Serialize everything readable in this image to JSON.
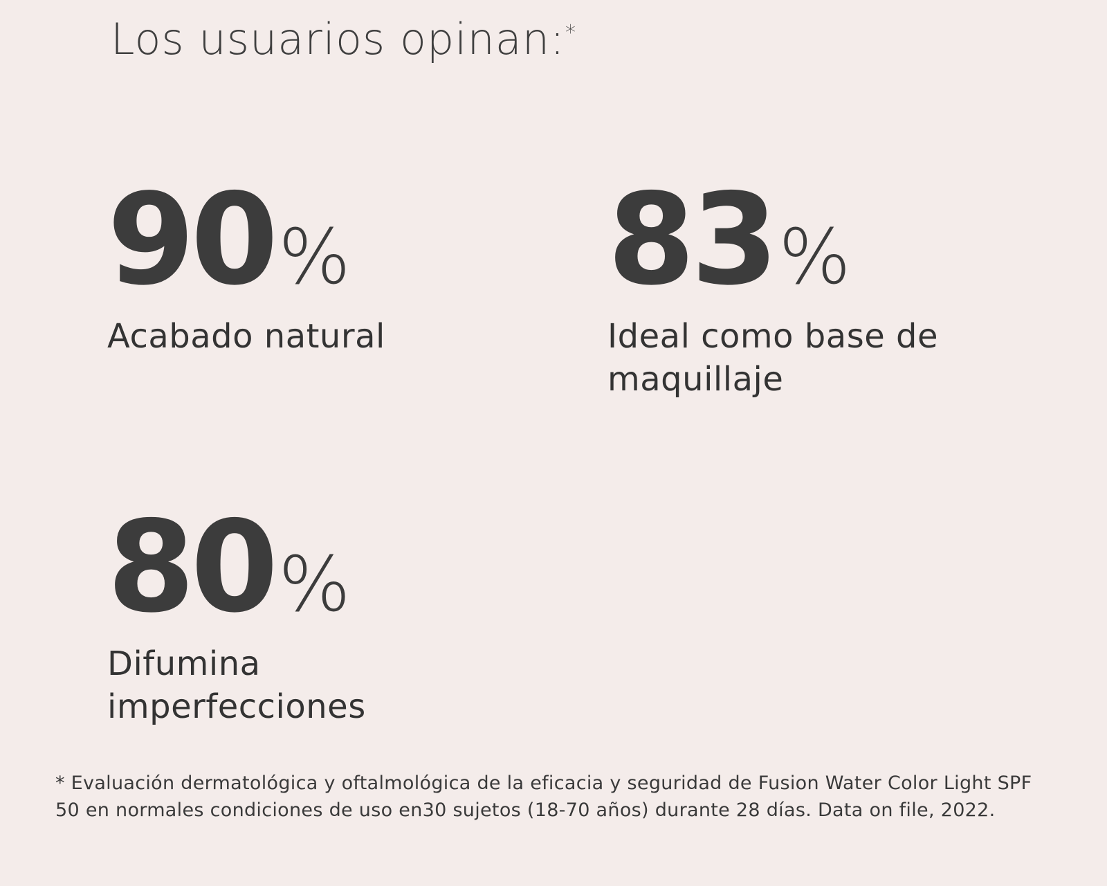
{
  "heading": {
    "text": "Los usuarios opinan:",
    "mark": "*"
  },
  "stats": [
    {
      "number": "90",
      "unit": "%",
      "label": "Acabado natural"
    },
    {
      "number": "83",
      "unit": "%",
      "label": "Ideal como base de maquillaje"
    },
    {
      "number": "80",
      "unit": "%",
      "label": "Difumina imperfecciones"
    }
  ],
  "footnote": "* Evaluación dermatológica y oftalmológica de la eficacia y seguridad de Fusion Water Color Light SPF 50 en normales condiciones de uso en30 sujetos (18-70 años) durante 28 días. Data on file, 2022.",
  "colors": {
    "background": "#f4ecea",
    "text": "#3f3f3f"
  }
}
